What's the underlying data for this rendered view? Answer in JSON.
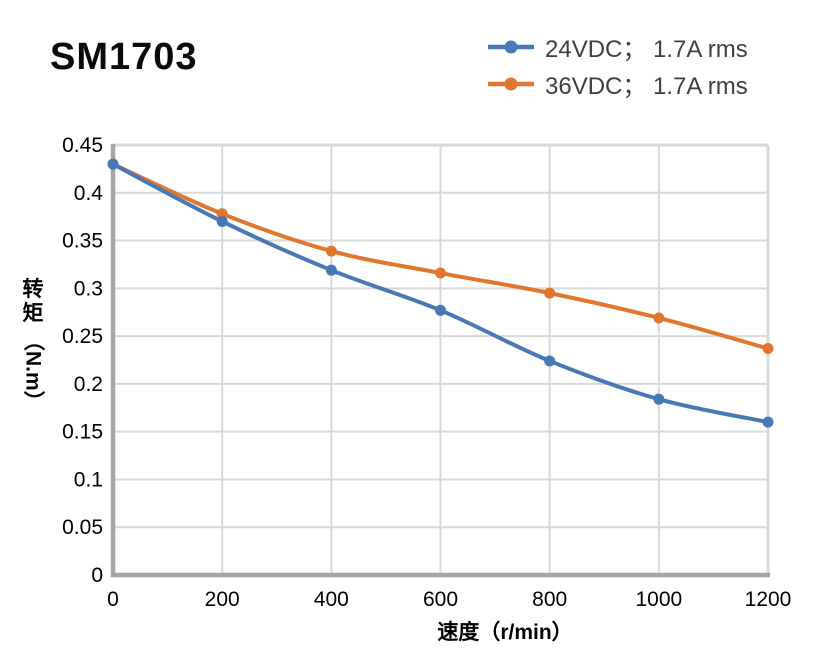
{
  "title": "SM1703",
  "legend": {
    "position": "top-right",
    "items": [
      {
        "label": "24VDC； 1.7A rms",
        "color": "#4878B6"
      },
      {
        "label": "36VDC； 1.7A rms",
        "color": "#E2762F"
      }
    ]
  },
  "chart_data": {
    "type": "line",
    "title": "SM1703",
    "x": [
      0,
      200,
      400,
      600,
      800,
      1000,
      1200
    ],
    "series": [
      {
        "name": "24VDC； 1.7A rms",
        "color": "#4878B6",
        "values": [
          0.43,
          0.37,
          0.319,
          0.277,
          0.224,
          0.184,
          0.16
        ]
      },
      {
        "name": "36VDC； 1.7A rms",
        "color": "#E2762F",
        "values": [
          0.43,
          0.378,
          0.339,
          0.316,
          0.295,
          0.269,
          0.237
        ]
      }
    ],
    "xlabel": "速度（r/min）",
    "ylabel": "转矩（N.m）",
    "ylabel_parts": {
      "chinese": "转矩",
      "unit": "（N.m）"
    },
    "xlim": [
      0,
      1200
    ],
    "ylim": [
      0,
      0.45
    ],
    "x_ticks": [
      0,
      200,
      400,
      600,
      800,
      1000,
      1200
    ],
    "y_ticks": [
      0,
      0.05,
      0.1,
      0.15,
      0.2,
      0.25,
      0.3,
      0.35,
      0.4,
      0.45
    ],
    "grid": true,
    "legend_position": "top-right",
    "marker": "circle",
    "colors": {
      "gridline": "#D9D9D9",
      "axis": "#A6A6A6",
      "frame": "#D9D9D9",
      "tick_text": "#000000",
      "legend_text": "#3F3F3F"
    }
  }
}
